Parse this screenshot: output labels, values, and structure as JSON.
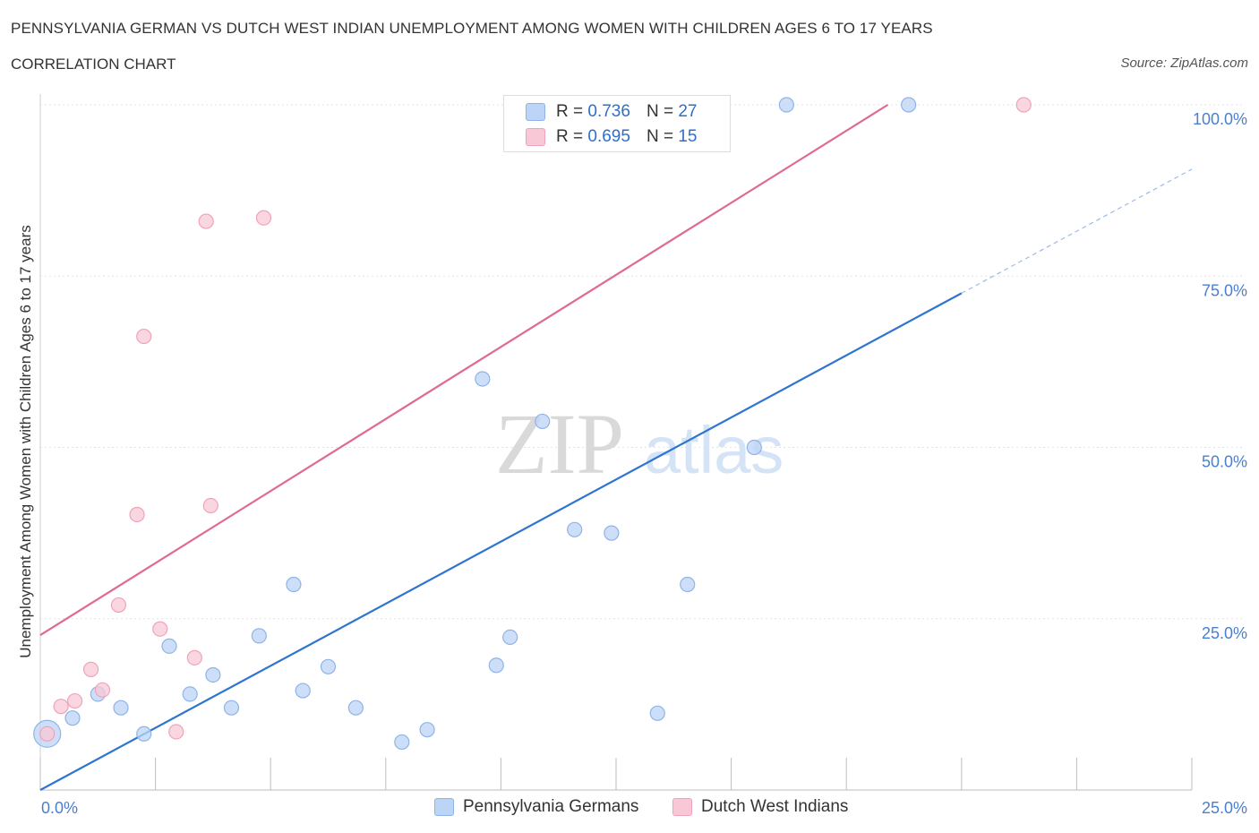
{
  "header": {
    "title": "PENNSYLVANIA GERMAN VS DUTCH WEST INDIAN UNEMPLOYMENT AMONG WOMEN WITH CHILDREN AGES 6 TO 17 YEARS",
    "subtitle": "CORRELATION CHART",
    "source": "Source: ZipAtlas.com"
  },
  "legend": {
    "items": [
      {
        "r_label": "R =",
        "r_value": "0.736",
        "n_label": "N =",
        "n_value": "27"
      },
      {
        "r_label": "R =",
        "r_value": "0.695",
        "n_label": "N =",
        "n_value": "15"
      }
    ]
  },
  "watermark": {
    "part1": "ZIP",
    "part2": "atlas"
  },
  "colors": {
    "blue_fill": "#bcd4f5",
    "blue_stroke": "#8fb3e6",
    "blue_line": "#2f74d0",
    "pink_fill": "#f8c8d6",
    "pink_stroke": "#eea3ba",
    "pink_line": "#e06a8f",
    "axis_text": "#4a7fd0",
    "grid": "#e3e3e3"
  },
  "chart_data": {
    "type": "scatter",
    "title": "PENNSYLVANIA GERMAN VS DUTCH WEST INDIAN UNEMPLOYMENT AMONG WOMEN WITH CHILDREN AGES 6 TO 17 YEARS",
    "subtitle": "CORRELATION CHART",
    "xlabel": "",
    "ylabel": "Unemployment Among Women with Children Ages 6 to 17 years",
    "xlim": [
      0,
      25
    ],
    "ylim": [
      0,
      100
    ],
    "x_tick_labels": [
      "0.0%",
      "25.0%"
    ],
    "y_tick_labels": [
      "100.0%",
      "75.0%",
      "50.0%",
      "25.0%"
    ],
    "y_ticks": [
      100,
      75,
      50,
      25
    ],
    "grid": true,
    "series": [
      {
        "name": "Pennsylvania Germans",
        "R": 0.736,
        "N": 27,
        "points": [
          [
            0.15,
            8.2,
            "big"
          ],
          [
            0.7,
            10.5
          ],
          [
            1.25,
            14
          ],
          [
            1.75,
            12
          ],
          [
            2.25,
            8.2
          ],
          [
            2.8,
            21
          ],
          [
            3.25,
            14
          ],
          [
            3.75,
            16.8
          ],
          [
            4.15,
            12
          ],
          [
            4.75,
            22.5
          ],
          [
            5.5,
            30
          ],
          [
            5.7,
            14.5
          ],
          [
            6.25,
            18
          ],
          [
            6.85,
            12
          ],
          [
            7.85,
            7
          ],
          [
            8.4,
            8.8
          ],
          [
            9.6,
            60
          ],
          [
            9.9,
            18.2
          ],
          [
            10.2,
            22.3
          ],
          [
            10.9,
            53.8
          ],
          [
            11.6,
            38
          ],
          [
            12.4,
            37.5
          ],
          [
            13.4,
            11.2
          ],
          [
            14.05,
            30
          ],
          [
            15.5,
            50
          ],
          [
            16.2,
            100
          ],
          [
            18.85,
            100
          ]
        ],
        "trend": {
          "x0": 0,
          "y0": 0,
          "x1": 20,
          "y1": 72.5,
          "dashed_to_x": 25,
          "dashed_to_y": 90.6
        }
      },
      {
        "name": "Dutch West Indians",
        "R": 0.695,
        "N": 15,
        "points": [
          [
            0.15,
            8.2
          ],
          [
            0.45,
            12.2
          ],
          [
            0.75,
            13
          ],
          [
            1.1,
            17.6
          ],
          [
            1.35,
            14.6
          ],
          [
            2.1,
            40.2
          ],
          [
            2.25,
            66.2
          ],
          [
            1.7,
            27
          ],
          [
            2.6,
            23.5
          ],
          [
            2.95,
            8.5
          ],
          [
            3.35,
            19.3
          ],
          [
            3.6,
            83
          ],
          [
            3.7,
            41.5
          ],
          [
            4.85,
            83.5
          ],
          [
            21.35,
            100
          ]
        ],
        "trend": {
          "x0": 0,
          "y0": 22.6,
          "x1": 18.4,
          "y1": 100
        }
      }
    ]
  },
  "bottom_legend": {
    "items": [
      "Pennsylvania Germans",
      "Dutch West Indians"
    ]
  }
}
